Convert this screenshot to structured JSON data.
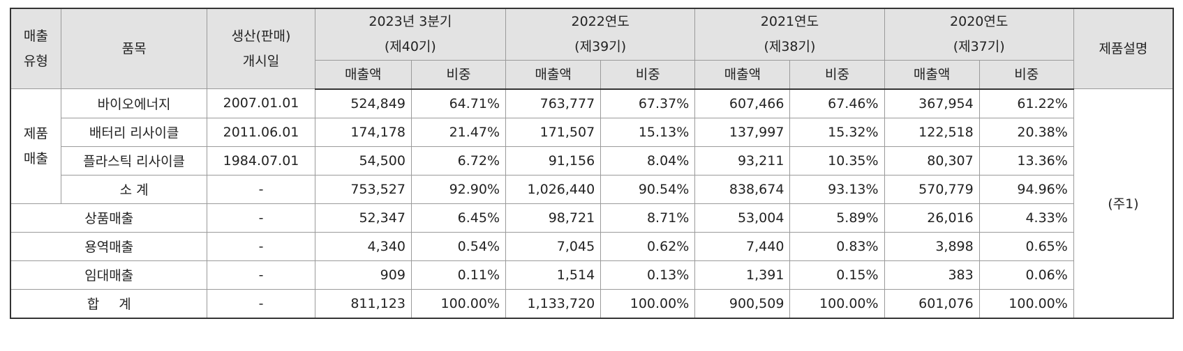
{
  "headers": {
    "sales_type": [
      "매출",
      "유형"
    ],
    "item": "품목",
    "start_date": [
      "생산(판매)",
      "개시일"
    ],
    "periods": [
      {
        "line1": "2023년 3분기",
        "line2": "(제40기)"
      },
      {
        "line1": "2022연도",
        "line2": "(제39기)"
      },
      {
        "line1": "2021연도",
        "line2": "(제38기)"
      },
      {
        "line1": "2020연도",
        "line2": "(제37기)"
      }
    ],
    "amount": "매출액",
    "ratio": "비중",
    "description": "제품설명"
  },
  "group": {
    "label": [
      "제품",
      "매출"
    ]
  },
  "description_note": "(주1)",
  "rows": [
    {
      "item": "바이오에너지",
      "date": "2007.01.01",
      "vals": [
        "524,849",
        "64.71%",
        "763,777",
        "67.37%",
        "607,466",
        "67.46%",
        "367,954",
        "61.22%"
      ]
    },
    {
      "item": "배터리 리사이클",
      "date": "2011.06.01",
      "vals": [
        "174,178",
        "21.47%",
        "171,507",
        "15.13%",
        "137,997",
        "15.32%",
        "122,518",
        "20.38%"
      ]
    },
    {
      "item": "플라스틱 리사이클",
      "date": "1984.07.01",
      "vals": [
        "54,500",
        "6.72%",
        "91,156",
        "8.04%",
        "93,211",
        "10.35%",
        "80,307",
        "13.36%"
      ]
    },
    {
      "item": "소 계",
      "date": "-",
      "vals": [
        "753,527",
        "92.90%",
        "1,026,440",
        "90.54%",
        "838,674",
        "93.13%",
        "570,779",
        "94.96%"
      ]
    },
    {
      "item": "상품매출",
      "date": "-",
      "vals": [
        "52,347",
        "6.45%",
        "98,721",
        "8.71%",
        "53,004",
        "5.89%",
        "26,016",
        "4.33%"
      ]
    },
    {
      "item": "용역매출",
      "date": "-",
      "vals": [
        "4,340",
        "0.54%",
        "7,045",
        "0.62%",
        "7,440",
        "0.83%",
        "3,898",
        "0.65%"
      ]
    },
    {
      "item": "임대매출",
      "date": "-",
      "vals": [
        "909",
        "0.11%",
        "1,514",
        "0.13%",
        "1,391",
        "0.15%",
        "383",
        "0.06%"
      ]
    },
    {
      "item": "합 계",
      "date": "-",
      "vals": [
        "811,123",
        "100.00%",
        "1,133,720",
        "100.00%",
        "900,509",
        "100.00%",
        "601,076",
        "100.00%"
      ]
    }
  ]
}
